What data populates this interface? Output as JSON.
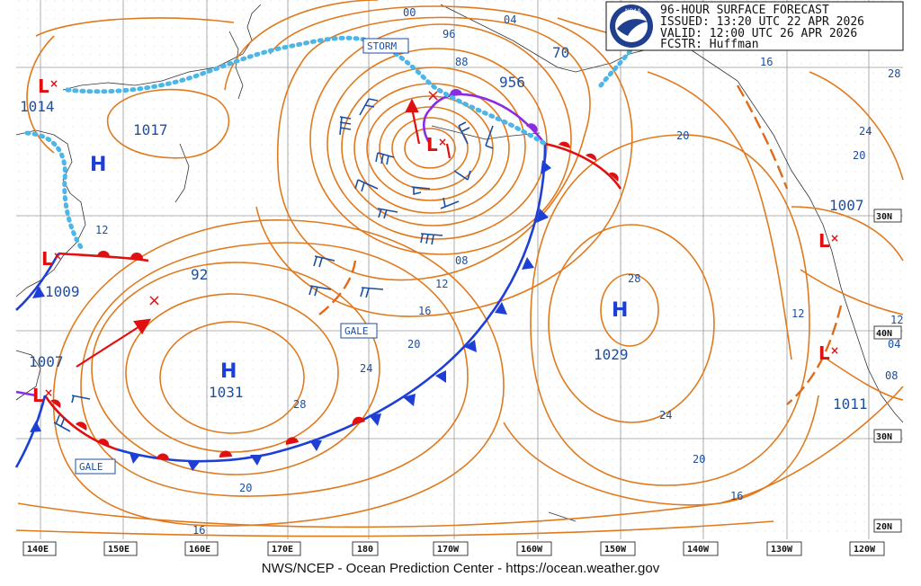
{
  "header": {
    "line1": "96-HOUR SURFACE FORECAST",
    "line2": "ISSUED: 13:20 UTC 22 APR 2026",
    "line3": "VALID:  12:00 UTC 26 APR 2026",
    "line4": "FCSTR:  Huffman"
  },
  "footer": "NWS/NCEP - Ocean Prediction Center - https://ocean.weather.gov",
  "lon_labels": [
    "140E",
    "150E",
    "160E",
    "170E",
    "180",
    "170W",
    "160W",
    "150W",
    "140W",
    "130W",
    "120W"
  ],
  "lat_labels": [
    "30N",
    "40N",
    "30N",
    "20N"
  ],
  "pressure_systems": [
    {
      "type": "L",
      "label": "L",
      "pressure": "1014"
    },
    {
      "type": "H",
      "label": "H",
      "pressure": "1017"
    },
    {
      "type": "L",
      "label": "L",
      "pressure": "956"
    },
    {
      "type": "L",
      "label": "L",
      "pressure": "1009"
    },
    {
      "type": "L",
      "label": "L",
      "pressure": "1007"
    },
    {
      "type": "H",
      "label": "H",
      "pressure": "1031"
    },
    {
      "type": "H",
      "label": "H",
      "pressure": "1029"
    },
    {
      "type": "L",
      "label": "L",
      "pressure": "1007"
    },
    {
      "type": "L",
      "label": "L",
      "pressure": "1011"
    }
  ],
  "warnings": [
    "STORM",
    "GALE",
    "GALE"
  ],
  "isobar_labels": [
    "00",
    "04",
    "96",
    "88",
    "70",
    "16",
    "20",
    "24",
    "20",
    "12",
    "08",
    "12",
    "16",
    "20",
    "24",
    "28",
    "92",
    "28",
    "24",
    "20",
    "16",
    "20",
    "12",
    "16",
    "04",
    "08",
    "28",
    "12"
  ],
  "colors": {
    "isobar": "#e07a1e",
    "cold_front": "#1e3fd6",
    "warm_front": "#e01010",
    "occluded_front": "#8b2be2",
    "stationary_ice": "#4cb6e8",
    "trough": "#e06a1a"
  }
}
